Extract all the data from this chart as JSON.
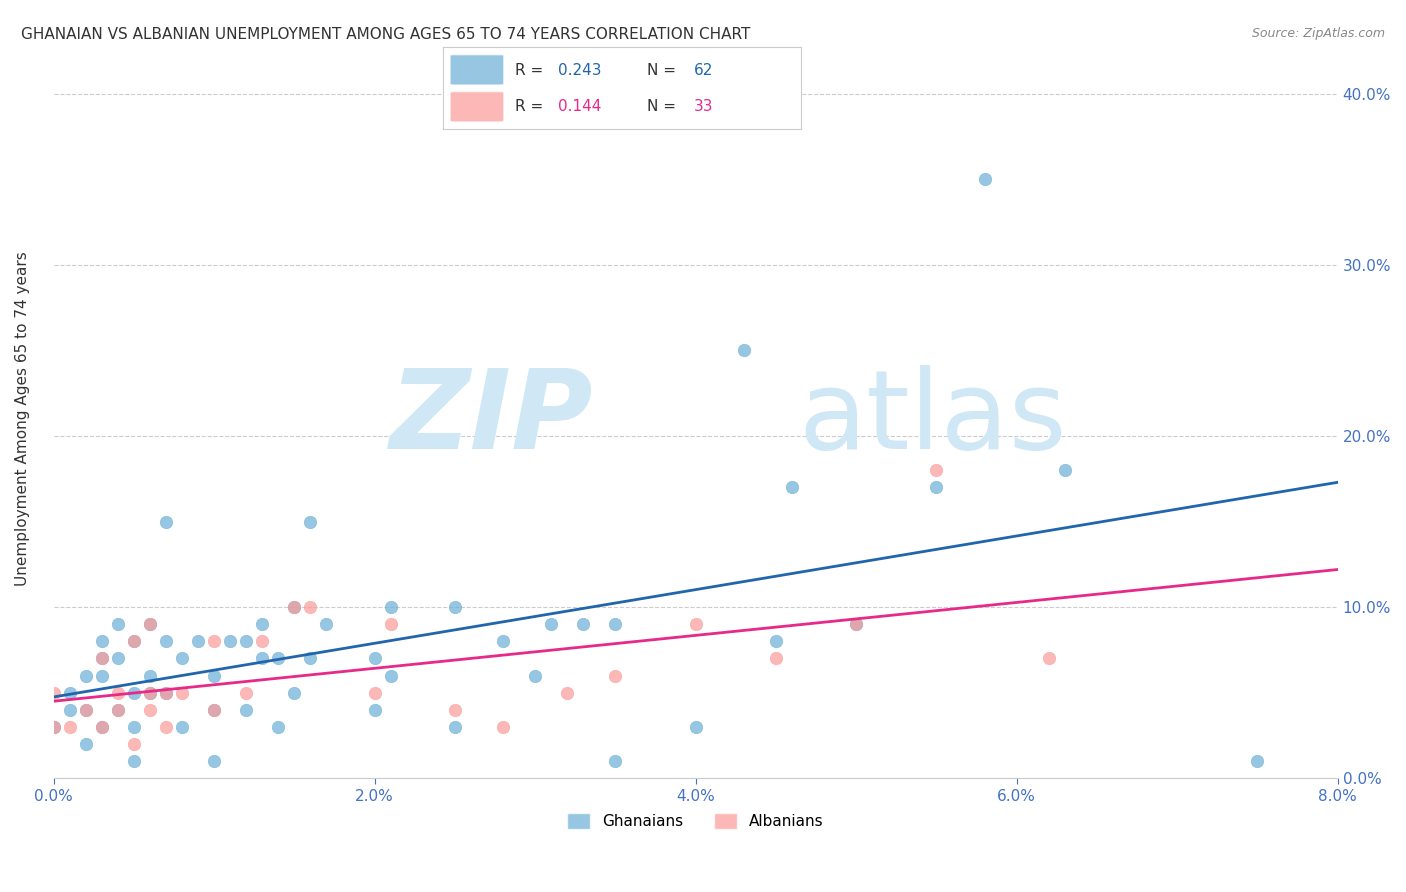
{
  "title": "GHANAIAN VS ALBANIAN UNEMPLOYMENT AMONG AGES 65 TO 74 YEARS CORRELATION CHART",
  "source": "Source: ZipAtlas.com",
  "ylabel": "Unemployment Among Ages 65 to 74 years",
  "xlabel_ticks": [
    "0.0%",
    "2.0%",
    "4.0%",
    "6.0%",
    "8.0%"
  ],
  "xlabel_vals": [
    0.0,
    0.02,
    0.04,
    0.06,
    0.08
  ],
  "ylabel_ticks": [
    "0.0%",
    "10.0%",
    "20.0%",
    "30.0%",
    "40.0%"
  ],
  "ylabel_vals": [
    0.0,
    0.1,
    0.2,
    0.3,
    0.4
  ],
  "xlim": [
    0.0,
    0.08
  ],
  "ylim": [
    0.0,
    0.42
  ],
  "ghanaian_color": "#6baed6",
  "albanian_color": "#fb9a99",
  "ghanaian_line_color": "#2166ac",
  "albanian_line_color": "#e7298a",
  "ghanaian_R": 0.243,
  "ghanaian_N": 62,
  "albanian_R": 0.144,
  "albanian_N": 33,
  "background_color": "#ffffff",
  "watermark_color": "#d0e8f5",
  "ghanaian_x": [
    0.0,
    0.001,
    0.001,
    0.002,
    0.002,
    0.002,
    0.003,
    0.003,
    0.003,
    0.003,
    0.004,
    0.004,
    0.004,
    0.005,
    0.005,
    0.005,
    0.005,
    0.006,
    0.006,
    0.006,
    0.007,
    0.007,
    0.007,
    0.008,
    0.008,
    0.009,
    0.01,
    0.01,
    0.01,
    0.011,
    0.012,
    0.012,
    0.013,
    0.013,
    0.014,
    0.014,
    0.015,
    0.015,
    0.016,
    0.016,
    0.017,
    0.02,
    0.02,
    0.021,
    0.021,
    0.025,
    0.025,
    0.028,
    0.03,
    0.031,
    0.033,
    0.035,
    0.035,
    0.04,
    0.043,
    0.045,
    0.046,
    0.05,
    0.055,
    0.058,
    0.063,
    0.075
  ],
  "ghanaian_y": [
    0.03,
    0.04,
    0.05,
    0.02,
    0.04,
    0.06,
    0.03,
    0.06,
    0.07,
    0.08,
    0.04,
    0.07,
    0.09,
    0.01,
    0.03,
    0.05,
    0.08,
    0.05,
    0.06,
    0.09,
    0.05,
    0.08,
    0.15,
    0.03,
    0.07,
    0.08,
    0.01,
    0.04,
    0.06,
    0.08,
    0.04,
    0.08,
    0.07,
    0.09,
    0.03,
    0.07,
    0.05,
    0.1,
    0.07,
    0.15,
    0.09,
    0.04,
    0.07,
    0.06,
    0.1,
    0.03,
    0.1,
    0.08,
    0.06,
    0.09,
    0.09,
    0.01,
    0.09,
    0.03,
    0.25,
    0.08,
    0.17,
    0.09,
    0.17,
    0.35,
    0.18,
    0.01
  ],
  "albanian_x": [
    0.0,
    0.0,
    0.001,
    0.002,
    0.003,
    0.003,
    0.004,
    0.004,
    0.005,
    0.005,
    0.006,
    0.006,
    0.006,
    0.007,
    0.007,
    0.008,
    0.01,
    0.01,
    0.012,
    0.013,
    0.015,
    0.016,
    0.02,
    0.021,
    0.025,
    0.028,
    0.032,
    0.035,
    0.04,
    0.045,
    0.05,
    0.055,
    0.062
  ],
  "albanian_y": [
    0.03,
    0.05,
    0.03,
    0.04,
    0.03,
    0.07,
    0.04,
    0.05,
    0.02,
    0.08,
    0.04,
    0.05,
    0.09,
    0.03,
    0.05,
    0.05,
    0.04,
    0.08,
    0.05,
    0.08,
    0.1,
    0.1,
    0.05,
    0.09,
    0.04,
    0.03,
    0.05,
    0.06,
    0.09,
    0.07,
    0.09,
    0.18,
    0.07
  ]
}
